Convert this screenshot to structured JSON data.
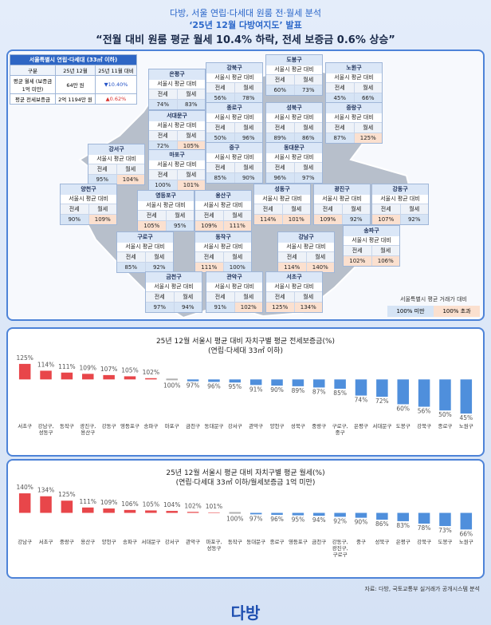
{
  "header": {
    "line1": "다방, 서울 연립·다세대 원룸 전·월세 분석",
    "line2": "‘25년 12월 다방여지도’ 발표",
    "headline": "“전월 대비 원룸 평균 월세 10.4% 하락, 전세 보증금 0.6% 상승”"
  },
  "summary": {
    "title": "서울특별시 연립·다세대 (33㎡ 이하)",
    "header": [
      "구분",
      "25년 12월",
      "25년 11월 대비"
    ],
    "rows": [
      [
        "평균 월세 (보증금 1억 미만)",
        "64만 원",
        "▼10.40%"
      ],
      [
        "평균 전세보증금",
        "2억 1194만 원",
        "▲0.62%"
      ]
    ]
  },
  "map": {
    "labels": {
      "sub": "서울시 평균 대비",
      "jeonse": "전세",
      "wolse": "월세"
    },
    "districts": [
      {
        "name": "은평구",
        "jeonse": "74%",
        "wolse": "83%"
      },
      {
        "name": "강북구",
        "jeonse": "56%",
        "wolse": "78%"
      },
      {
        "name": "도봉구",
        "jeonse": "60%",
        "wolse": "73%"
      },
      {
        "name": "노원구",
        "jeonse": "45%",
        "wolse": "66%"
      },
      {
        "name": "종로구",
        "jeonse": "50%",
        "wolse": "96%"
      },
      {
        "name": "성북구",
        "jeonse": "89%",
        "wolse": "86%"
      },
      {
        "name": "중랑구",
        "jeonse": "87%",
        "wolse": "125%"
      },
      {
        "name": "서대문구",
        "jeonse": "72%",
        "wolse": "105%"
      },
      {
        "name": "강서구",
        "jeonse": "95%",
        "wolse": "104%"
      },
      {
        "name": "마포구",
        "jeonse": "100%",
        "wolse": "101%"
      },
      {
        "name": "중구",
        "jeonse": "85%",
        "wolse": "90%"
      },
      {
        "name": "동대문구",
        "jeonse": "96%",
        "wolse": "97%"
      },
      {
        "name": "양천구",
        "jeonse": "90%",
        "wolse": "109%"
      },
      {
        "name": "영등포구",
        "jeonse": "105%",
        "wolse": "95%"
      },
      {
        "name": "용산구",
        "jeonse": "109%",
        "wolse": "111%"
      },
      {
        "name": "성동구",
        "jeonse": "114%",
        "wolse": "101%"
      },
      {
        "name": "광진구",
        "jeonse": "109%",
        "wolse": "92%"
      },
      {
        "name": "강동구",
        "jeonse": "107%",
        "wolse": "92%"
      },
      {
        "name": "구로구",
        "jeonse": "85%",
        "wolse": "92%"
      },
      {
        "name": "동작구",
        "jeonse": "111%",
        "wolse": "100%"
      },
      {
        "name": "강남구",
        "jeonse": "114%",
        "wolse": "140%"
      },
      {
        "name": "송파구",
        "jeonse": "102%",
        "wolse": "106%"
      },
      {
        "name": "금천구",
        "jeonse": "97%",
        "wolse": "94%"
      },
      {
        "name": "관악구",
        "jeonse": "91%",
        "wolse": "102%"
      },
      {
        "name": "서초구",
        "jeonse": "125%",
        "wolse": "134%"
      }
    ],
    "legend": {
      "title": "서울특별시 평균 거래가 대비",
      "below": "100% 미만",
      "above": "100% 초과"
    }
  },
  "chart_data": [
    {
      "type": "bar",
      "title": "25년 12월 서울시 평균 대비 자치구별 평균 전세보증금(%)",
      "subtitle": "(연립·다세대 33㎡ 이하)",
      "categories": [
        "서초구",
        "강남구, 성동구",
        "동작구",
        "광진구, 용산구",
        "강동구",
        "영등포구",
        "송파구",
        "마포구",
        "금천구",
        "동대문구",
        "강서구",
        "관악구",
        "양천구",
        "성북구",
        "중랑구",
        "구로구, 중구",
        "은평구",
        "서대문구",
        "도봉구",
        "강북구",
        "종로구",
        "노원구"
      ],
      "values": [
        125,
        114,
        111,
        109,
        107,
        105,
        102,
        100,
        97,
        96,
        95,
        91,
        90,
        89,
        87,
        85,
        74,
        72,
        60,
        56,
        50,
        45
      ],
      "value_labels": [
        "125%",
        "114%",
        "111%",
        "109%",
        "107%",
        "105%",
        "102%",
        "100%",
        "97%",
        "96%",
        "95%",
        "91%",
        "90%",
        "89%",
        "87%",
        "85%",
        "74%",
        "72%",
        "60%",
        "56%",
        "50%",
        "45%"
      ],
      "baseline": 100,
      "ylim": [
        40,
        130
      ],
      "colors": {
        "above": "#e8464a",
        "below": "#4f8fdc",
        "equal": "#b0b0b0"
      }
    },
    {
      "type": "bar",
      "title": "25년 12월 서울시 평균 대비 자치구별 평균 월세(%)",
      "subtitle": "(연립·다세대 33㎡ 이하/월세보증금 1억 미만)",
      "categories": [
        "강남구",
        "서초구",
        "중랑구",
        "용산구",
        "양천구",
        "송파구",
        "서대문구",
        "강서구",
        "관악구",
        "마포구, 성동구",
        "동작구",
        "동대문구",
        "종로구",
        "영등포구",
        "금천구",
        "강동구, 광진구, 구로구",
        "중구",
        "성북구",
        "은평구",
        "강북구",
        "도봉구",
        "노원구"
      ],
      "values": [
        140,
        134,
        125,
        111,
        109,
        106,
        105,
        104,
        102,
        101,
        100,
        97,
        96,
        95,
        94,
        92,
        90,
        86,
        83,
        78,
        73,
        66
      ],
      "value_labels": [
        "140%",
        "134%",
        "125%",
        "111%",
        "109%",
        "106%",
        "105%",
        "104%",
        "102%",
        "101%",
        "100%",
        "97%",
        "96%",
        "95%",
        "94%",
        "92%",
        "90%",
        "86%",
        "83%",
        "78%",
        "73%",
        "66%"
      ],
      "baseline": 100,
      "ylim": [
        60,
        145
      ],
      "colors": {
        "above": "#e8464a",
        "below": "#4f8fdc",
        "equal": "#b0b0b0"
      }
    }
  ],
  "source": "자료: 다방, 국토교통부 실거래가 공개시스템 분석",
  "logo": "다방"
}
